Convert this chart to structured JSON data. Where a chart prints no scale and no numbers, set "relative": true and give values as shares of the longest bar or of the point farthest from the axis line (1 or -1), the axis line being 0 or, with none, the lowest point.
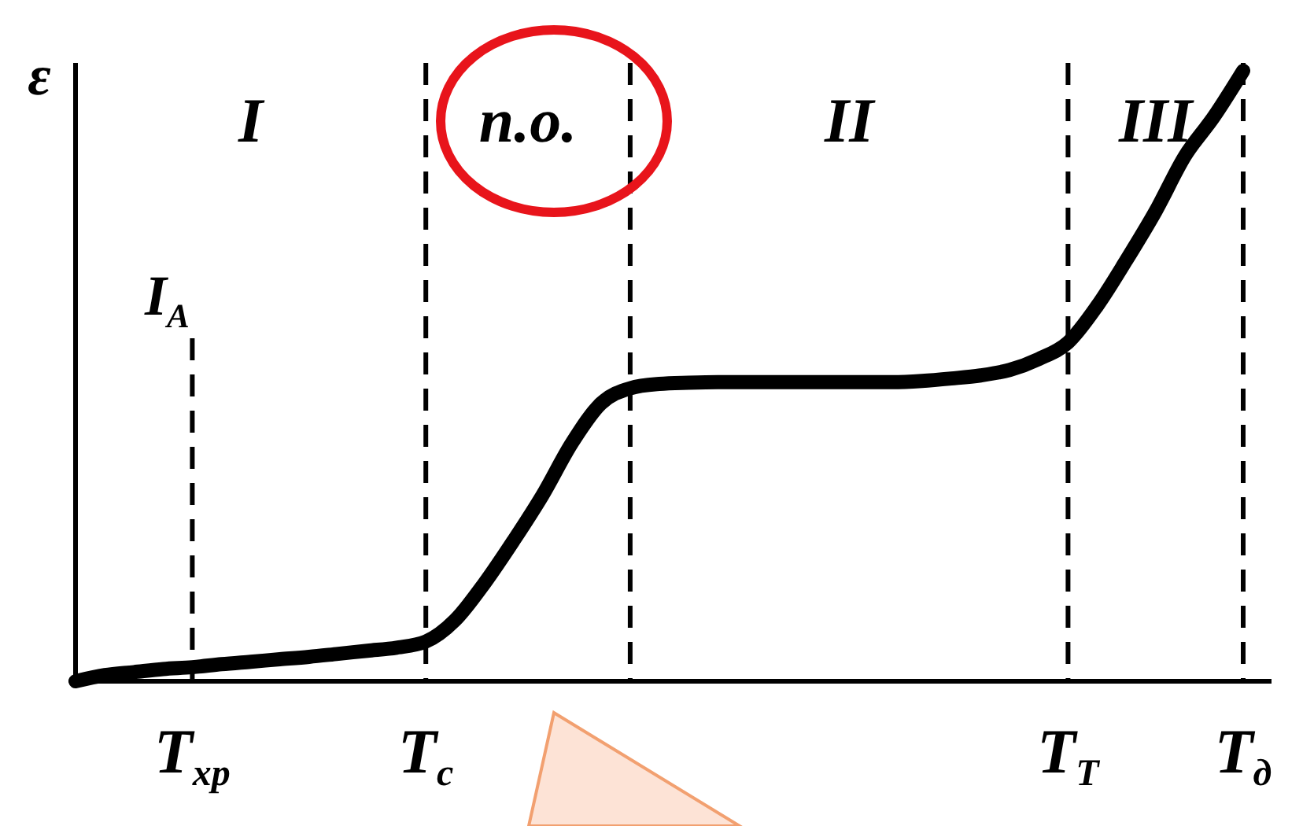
{
  "chart_data": {
    "type": "line",
    "relative": true,
    "ylabel": "ε",
    "categories": [
      null,
      null,
      null,
      null,
      "T$_{хр}$",
      null,
      null,
      null,
      null,
      null,
      null,
      null,
      "T$_{с}$",
      null,
      null,
      null,
      null,
      null,
      null,
      null,
      null,
      null,
      null,
      null,
      null,
      null,
      null,
      null,
      null,
      null,
      null,
      null,
      null,
      null,
      "T$_{Т}$",
      null,
      null,
      null,
      null,
      null,
      "T$_{д}$"
    ],
    "series": [
      {
        "color": "#000000",
        "values": [
          0,
          0.01,
          0.015,
          0.02,
          0.023,
          0.028,
          0.032,
          0.036,
          0.04,
          0.045,
          0.05,
          0.055,
          0.065,
          0.1,
          0.16,
          0.23,
          0.305,
          0.39,
          0.455,
          0.48,
          0.487,
          0.489,
          0.49,
          0.49,
          0.49,
          0.49,
          0.49,
          0.49,
          0.49,
          0.492,
          0.496,
          0.501,
          0.51,
          0.528,
          0.555,
          0.615,
          0.69,
          0.77,
          0.86,
          0.925,
          1
        ]
      }
    ],
    "ref_lines": [
      {
        "axis": "x",
        "value": "T$_{хр}$",
        "label": "I$_{A}$",
        "line_style": "dashed"
      },
      {
        "axis": "x",
        "value": "T$_{с}$",
        "line_style": "dashed"
      },
      {
        "axis": "x",
        "value": "T$_{Т}$",
        "line_style": "dashed"
      },
      {
        "axis": "x",
        "value": "T$_{д}$",
        "line_style": "dashed"
      }
    ],
    "annotations": [
      "I",
      "п.о.",
      "II",
      "III"
    ],
    "marker": "none",
    "line_style": "solid"
  }
}
